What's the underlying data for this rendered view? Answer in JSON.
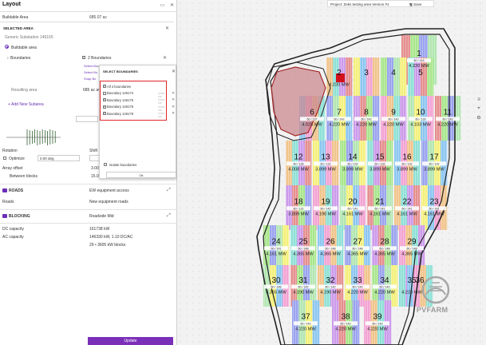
{
  "panel": {
    "title": "Layout",
    "buildable_area": {
      "label": "Buildable Area",
      "value": "685.07 ac"
    },
    "selected_area": {
      "title": "SELECTED AREA",
      "substation": "Generic Substation 146165",
      "buildable_label": "Buildable area",
      "boundaries_label": "Boundaries",
      "boundaries_value": "2 Boundaries",
      "link1": "Select Bo",
      "link1_hint": "undaries inside Zone / Fill",
      "link2": "Select Bo",
      "link3": "Snap Bo",
      "resulting_label": "Resulting area",
      "resulting_value": "685 ac avai",
      "add_subarea": "+ Add New Subarea"
    },
    "rotation": {
      "label": "Rotation",
      "value": "0.00 deg",
      "shift": "Shift"
    },
    "optimize_label": "Optimize",
    "array_offset": {
      "label": "Array offset",
      "value": "3.000"
    },
    "between_blocks": {
      "label": "Between blocks",
      "value": "15.00"
    },
    "roads": {
      "label": "ROADS",
      "value": "EW equipment access"
    },
    "roads_row": {
      "label": "Roads",
      "value": "New equipment roads"
    },
    "blocking": {
      "label": "BLOCKING",
      "value": "Roadside Mid"
    },
    "dc_capacity": {
      "label": "DC capacity",
      "value": "161738 kW"
    },
    "ac_capacity": {
      "label": "AC capacity",
      "value": "146330 kW, 1.10 DC/AC"
    },
    "blocks": {
      "value": "29 • 3605 kW blocks"
    },
    "update_label": "Update"
  },
  "popup": {
    "title": "SELECT BOUNDARIES",
    "all_label": "All 4 boundaries",
    "items": [
      {
        "label": "Boundary 146174",
        "checked": false
      },
      {
        "label": "Boundary 146175",
        "checked": true
      },
      {
        "label": "Boundary 146176",
        "checked": true
      },
      {
        "label": "Boundary 146179",
        "checked": true
      }
    ],
    "side_text": "show me",
    "isolate_label": "Isolate boundaries",
    "ok_label": "Ok"
  },
  "topbar": {
    "project": "Project: Zeks testing area Version #1",
    "save_label": "Save"
  },
  "map_blocks": [
    {
      "num": "1",
      "sub": "60 / 143",
      "mw": "4.220 MW"
    },
    {
      "num": "2",
      "sub": "",
      "mw": "4.220 MW"
    },
    {
      "num": "3",
      "sub": "",
      "mw": ""
    },
    {
      "num": "4",
      "sub": "",
      "mw": ""
    },
    {
      "num": "5",
      "sub": "",
      "mw": ""
    },
    {
      "num": "6",
      "sub": "60 / 137",
      "mw": "4.025 MW"
    },
    {
      "num": "7",
      "sub": "60 / 143",
      "mw": "4.220 MW"
    },
    {
      "num": "8",
      "sub": "60 / 143",
      "mw": "4.220 MW"
    },
    {
      "num": "9",
      "sub": "60 / 143",
      "mw": "4.220 MW"
    },
    {
      "num": "10",
      "sub": "60 / 139",
      "mw": "4.103 MW"
    },
    {
      "num": "11",
      "sub": "60 / 143",
      "mw": "4.220 MW"
    },
    {
      "num": "12",
      "sub": "60 / 136",
      "mw": "4.008 MW"
    },
    {
      "num": "13",
      "sub": "60 / 132",
      "mw": "3.899 MW"
    },
    {
      "num": "14",
      "sub": "60 / 132",
      "mw": "3.899 MW"
    },
    {
      "num": "15",
      "sub": "60 / 132",
      "mw": "3.899 MW"
    },
    {
      "num": "16",
      "sub": "60 / 132",
      "mw": "3.899 MW"
    },
    {
      "num": "17",
      "sub": "60 / 132",
      "mw": "3.899 MW"
    },
    {
      "num": "18",
      "sub": "60 / 132",
      "mw": "3.899 MW"
    },
    {
      "num": "19",
      "sub": "60 / 142",
      "mw": "4.190 MW"
    },
    {
      "num": "20",
      "sub": "60 / 141",
      "mw": "4.161 MW"
    },
    {
      "num": "21",
      "sub": "60 / 141",
      "mw": "4.161 MW"
    },
    {
      "num": "22",
      "sub": "60 / 141",
      "mw": "4.161 MW"
    },
    {
      "num": "23",
      "sub": "60 / 141",
      "mw": "4.161 MW"
    },
    {
      "num": "24",
      "sub": "60 / 141",
      "mw": "4.161 MW"
    },
    {
      "num": "25",
      "sub": "60 / 148",
      "mw": "4.365 MW"
    },
    {
      "num": "26",
      "sub": "60 / 148",
      "mw": "4.365 MW"
    },
    {
      "num": "27",
      "sub": "60 / 148",
      "mw": "4.365 MW"
    },
    {
      "num": "28",
      "sub": "60 / 148",
      "mw": "4.365 MW"
    },
    {
      "num": "29",
      "sub": "60 / 148",
      "mw": "4.365 MW"
    },
    {
      "num": "30",
      "sub": "60 / 148",
      "mw": "4.365 MW"
    },
    {
      "num": "31",
      "sub": "60 / 142",
      "mw": "4.190 MW"
    },
    {
      "num": "32",
      "sub": "60 / 142",
      "mw": "4.190 MW"
    },
    {
      "num": "33",
      "sub": "60 / 143",
      "mw": "4.220 MW"
    },
    {
      "num": "34",
      "sub": "60 / 143",
      "mw": "4.220 MW"
    },
    {
      "num": "35",
      "sub": "",
      "mw": "4.220 MW"
    },
    {
      "num": "36",
      "sub": "",
      "mw": ""
    },
    {
      "num": "37",
      "sub": "60 / 143",
      "mw": "4.220 MW"
    },
    {
      "num": "38",
      "sub": "60 / 143",
      "mw": "4.220 MW"
    },
    {
      "num": "39",
      "sub": "60 / 143",
      "mw": "4.220 MW"
    }
  ],
  "logo_text": "PVFARM",
  "colors": {
    "accent": "#7a2fb9",
    "highlight": "#e0262a",
    "exclusion": "#c98a90",
    "block_palette": [
      "#e58f8f",
      "#f0c48b",
      "#f4f07c",
      "#a9e68c",
      "#8fe0d6",
      "#8dc6f0",
      "#9aa3ee",
      "#cc9bea",
      "#f2a3d3",
      "#b2e6b2"
    ]
  }
}
